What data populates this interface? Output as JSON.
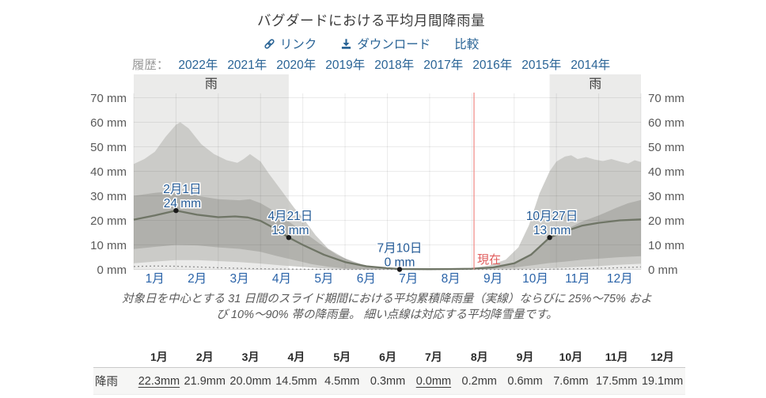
{
  "title": "バグダードにおける平均月間降雨量",
  "toolbar": {
    "link_label": "リンク",
    "download_label": "ダウンロード",
    "compare_label": "比較"
  },
  "history": {
    "label": "履歴：",
    "years": [
      "2022年",
      "2021年",
      "2020年",
      "2019年",
      "2018年",
      "2017年",
      "2016年",
      "2015年",
      "2014年"
    ]
  },
  "chart_data": {
    "type": "area",
    "title": "バグダードにおける平均月間降雨量",
    "unit": "mm",
    "ylim": [
      0,
      70
    ],
    "ytick_labels": [
      "0 mm",
      "10 mm",
      "20 mm",
      "30 mm",
      "40 mm",
      "50 mm",
      "60 mm",
      "70 mm"
    ],
    "yticks": [
      0,
      10,
      20,
      30,
      40,
      50,
      60,
      70
    ],
    "x_month_labels": [
      "1月",
      "2月",
      "3月",
      "4月",
      "5月",
      "6月",
      "7月",
      "8月",
      "9月",
      "10月",
      "11月",
      "12月"
    ],
    "rain_bands": [
      {
        "label": "雨",
        "start_m": 0,
        "end_m": 3.667
      },
      {
        "label": "雨",
        "start_m": 9.839,
        "end_m": 12
      }
    ],
    "now_line": {
      "label": "現在",
      "m": 8.05
    },
    "series": {
      "band_outer": {
        "name": "10%～90% 帯の降雨量",
        "points_upper": [
          [
            0,
            43
          ],
          [
            0.25,
            45
          ],
          [
            0.5,
            48
          ],
          [
            0.75,
            54
          ],
          [
            1,
            59
          ],
          [
            1.1,
            60
          ],
          [
            1.3,
            57.5
          ],
          [
            1.6,
            51
          ],
          [
            1.9,
            47
          ],
          [
            2.2,
            44.5
          ],
          [
            2.45,
            43.5
          ],
          [
            2.6,
            45
          ],
          [
            2.75,
            47
          ],
          [
            3,
            44
          ],
          [
            3.2,
            39
          ],
          [
            3.5,
            32
          ],
          [
            3.8,
            25
          ],
          [
            4,
            21
          ],
          [
            4.3,
            14
          ],
          [
            4.6,
            8.5
          ],
          [
            5,
            4.5
          ],
          [
            5.4,
            2
          ],
          [
            5.8,
            0.8
          ],
          [
            6.29,
            0.3
          ],
          [
            7,
            0.2
          ],
          [
            7.6,
            0.3
          ],
          [
            8,
            0.6
          ],
          [
            8.4,
            1.5
          ],
          [
            8.8,
            4
          ],
          [
            9.1,
            9
          ],
          [
            9.35,
            18
          ],
          [
            9.6,
            31
          ],
          [
            9.839,
            40
          ],
          [
            10,
            44
          ],
          [
            10.2,
            46
          ],
          [
            10.35,
            46.5
          ],
          [
            10.5,
            45
          ],
          [
            10.7,
            45.8
          ],
          [
            10.9,
            44.8
          ],
          [
            11.1,
            44.2
          ],
          [
            11.3,
            45
          ],
          [
            11.5,
            44
          ],
          [
            11.7,
            43.2
          ],
          [
            11.85,
            44.5
          ],
          [
            12,
            43.8
          ]
        ],
        "points_lower": [
          [
            0,
            2.5
          ],
          [
            0.5,
            3.2
          ],
          [
            1,
            3.8
          ],
          [
            1.5,
            3.8
          ],
          [
            2,
            3.4
          ],
          [
            2.5,
            3
          ],
          [
            3,
            2.4
          ],
          [
            3.5,
            1.6
          ],
          [
            4,
            1
          ],
          [
            4.5,
            0.4
          ],
          [
            5,
            0.1
          ],
          [
            5.5,
            0
          ],
          [
            7,
            0
          ],
          [
            8.5,
            0
          ],
          [
            9,
            0.1
          ],
          [
            9.5,
            0.3
          ],
          [
            10,
            0.6
          ],
          [
            10.5,
            1
          ],
          [
            11,
            1.4
          ],
          [
            11.5,
            1.9
          ],
          [
            12,
            2.3
          ]
        ]
      },
      "band_inner": {
        "name": "25%～75% 帯の降雨量",
        "points_upper": [
          [
            0,
            30
          ],
          [
            0.5,
            31.2
          ],
          [
            1,
            32
          ],
          [
            1.5,
            30
          ],
          [
            2,
            28.6
          ],
          [
            2.5,
            28.2
          ],
          [
            2.75,
            28.6
          ],
          [
            3,
            27
          ],
          [
            3.3,
            24
          ],
          [
            3.667,
            19.5
          ],
          [
            4,
            15.5
          ],
          [
            4.4,
            10.5
          ],
          [
            4.8,
            6
          ],
          [
            5.2,
            3
          ],
          [
            5.6,
            1.2
          ],
          [
            6,
            0.4
          ],
          [
            6.29,
            0.2
          ],
          [
            7,
            0.1
          ],
          [
            8,
            0.3
          ],
          [
            8.5,
            1
          ],
          [
            9,
            2.8
          ],
          [
            9.4,
            6.5
          ],
          [
            9.839,
            12.5
          ],
          [
            10.2,
            16
          ],
          [
            10.6,
            19.5
          ],
          [
            11,
            22
          ],
          [
            11.4,
            25
          ],
          [
            11.7,
            27
          ],
          [
            12,
            28.3
          ]
        ],
        "points_lower": [
          [
            0,
            8.3
          ],
          [
            0.5,
            9.2
          ],
          [
            1,
            10
          ],
          [
            1.5,
            9.8
          ],
          [
            2,
            9
          ],
          [
            2.5,
            8.4
          ],
          [
            3,
            7.2
          ],
          [
            3.4,
            5.4
          ],
          [
            3.8,
            3.8
          ],
          [
            4.2,
            2.2
          ],
          [
            4.6,
            1.1
          ],
          [
            5,
            0.4
          ],
          [
            5.5,
            0.1
          ],
          [
            6,
            0
          ],
          [
            8,
            0
          ],
          [
            8.6,
            0.4
          ],
          [
            9,
            0.8
          ],
          [
            9.4,
            1.6
          ],
          [
            9.839,
            2.6
          ],
          [
            10.2,
            3.2
          ],
          [
            10.6,
            3.9
          ],
          [
            11,
            4.4
          ],
          [
            11.5,
            5
          ],
          [
            12,
            5.4
          ]
        ]
      },
      "mean": {
        "name": "平均累積降雨量（実線）",
        "points": [
          [
            0,
            20.3
          ],
          [
            0.5,
            22
          ],
          [
            1,
            24
          ],
          [
            1.5,
            22.3
          ],
          [
            2,
            21.3
          ],
          [
            2.4,
            21.6
          ],
          [
            2.7,
            21.2
          ],
          [
            3,
            19.8
          ],
          [
            3.3,
            17
          ],
          [
            3.667,
            13
          ],
          [
            4,
            10
          ],
          [
            4.5,
            6
          ],
          [
            5,
            3
          ],
          [
            5.5,
            1.3
          ],
          [
            6,
            0.5
          ],
          [
            6.29,
            0.15
          ],
          [
            7,
            0.1
          ],
          [
            7.5,
            0.15
          ],
          [
            8,
            0.3
          ],
          [
            8.5,
            0.8
          ],
          [
            9,
            2.5
          ],
          [
            9.4,
            6
          ],
          [
            9.839,
            13
          ],
          [
            10.2,
            15.5
          ],
          [
            10.6,
            17.8
          ],
          [
            11,
            19
          ],
          [
            11.5,
            20
          ],
          [
            12,
            20.4
          ]
        ]
      },
      "snow": {
        "name": "平均降雪量（細い点線）",
        "points": [
          [
            0,
            1.2
          ],
          [
            0.5,
            1.4
          ],
          [
            1,
            1.3
          ],
          [
            1.5,
            1
          ],
          [
            2,
            0.7
          ],
          [
            2.5,
            0.45
          ],
          [
            3,
            0.25
          ],
          [
            3.5,
            0.12
          ],
          [
            4,
            0.05
          ],
          [
            4.5,
            0
          ],
          [
            9.5,
            0
          ],
          [
            10,
            0.1
          ],
          [
            10.5,
            0.25
          ],
          [
            11,
            0.45
          ],
          [
            11.5,
            0.7
          ],
          [
            12,
            1
          ]
        ]
      }
    },
    "annotations": [
      {
        "date": "2月1日",
        "value": "24 mm",
        "m": 1,
        "mm": 24,
        "dx": 8
      },
      {
        "date": "4月21日",
        "value": "13 mm",
        "m": 3.667,
        "mm": 13,
        "dx": 2
      },
      {
        "date": "7月10日",
        "value": "0 mm",
        "m": 6.29,
        "mm": 0,
        "dx": 0
      },
      {
        "date": "10月27日",
        "value": "13 mm",
        "m": 9.839,
        "mm": 13,
        "dx": 3
      }
    ]
  },
  "caption": {
    "line1": "対象日を中心とする 31 日間のスライド期間における平均累積降雨量（実線）ならびに 25%～75% およ",
    "line2": "び 10%～90% 帯の降雨量。 細い点線は対応する平均降雪量です。"
  },
  "table": {
    "row_label": "降雨",
    "columns": [
      "1月",
      "2月",
      "3月",
      "4月",
      "5月",
      "6月",
      "7月",
      "8月",
      "9月",
      "10月",
      "11月",
      "12月"
    ],
    "values": [
      "22.3mm",
      "21.9mm",
      "20.0mm",
      "14.5mm",
      "4.5mm",
      "0.3mm",
      "0.0mm",
      "0.2mm",
      "0.6mm",
      "7.6mm",
      "17.5mm",
      "19.1mm"
    ],
    "underlined_indices": [
      0,
      6
    ]
  },
  "colors": {
    "accent_blue": "#2a63a8",
    "link_blue": "#2a6496",
    "annotation_blue": "#235a96",
    "title_text": "#3c3c3c",
    "muted_text": "#595959",
    "season_band": "#ebebea",
    "band_outer": "#c6c6c2",
    "band_inner": "#96968f",
    "mean_line": "#6f7566",
    "snow_line": "#8f8f8f",
    "grid": "rgba(60,60,60,0.1)",
    "now_line": "#f0908c",
    "now_text": "#e05c5c",
    "dot": "#1a1a1a",
    "rain_label_text": "#3a3a3a"
  }
}
